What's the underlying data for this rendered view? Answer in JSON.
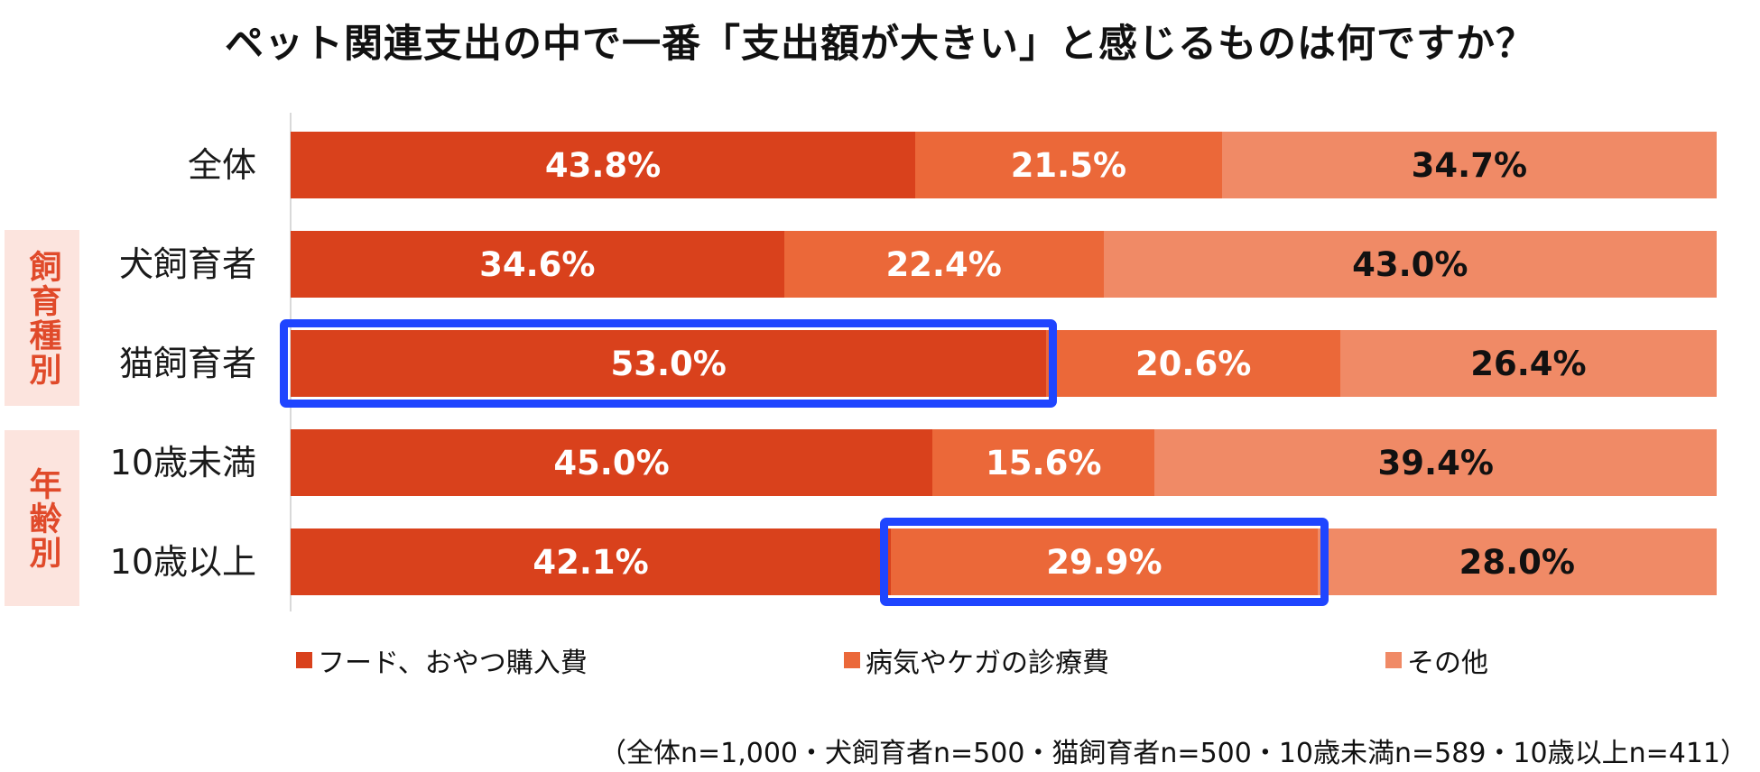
{
  "chart_data": {
    "type": "bar",
    "orientation": "horizontal",
    "stacked": true,
    "title": "ペット関連支出の中で一番「支出額が大きい」と感じるものは何ですか？",
    "categories": [
      "全体",
      "犬飼育者",
      "猫飼育者",
      "10歳未満",
      "10歳以上"
    ],
    "groups": [
      {
        "label": "飼育種別",
        "categories": [
          "犬飼育者",
          "猫飼育者"
        ]
      },
      {
        "label": "年齢別",
        "categories": [
          "10歳未満",
          "10歳以上"
        ]
      }
    ],
    "series": [
      {
        "name": "フード、おやつ購入費",
        "color": "#d9411c",
        "text_color": "#ffffff",
        "values": [
          43.8,
          34.6,
          53.0,
          45.0,
          42.1
        ],
        "labels": [
          "43.8%",
          "34.6%",
          "53.0%",
          "45.0%",
          "42.1%"
        ]
      },
      {
        "name": "病気やケガの診療費",
        "color": "#eb6839",
        "text_color": "#ffffff",
        "values": [
          21.5,
          22.4,
          20.6,
          15.6,
          29.9
        ],
        "labels": [
          "21.5%",
          "22.4%",
          "20.6%",
          "15.6%",
          "29.9%"
        ]
      },
      {
        "name": "その他",
        "color": "#f08a66",
        "text_color": "#111111",
        "values": [
          34.7,
          43.0,
          26.4,
          39.4,
          28.0
        ],
        "labels": [
          "34.7%",
          "43.0%",
          "26.4%",
          "39.4%",
          "28.0%"
        ]
      }
    ],
    "xlim": [
      0,
      100
    ],
    "highlights": [
      {
        "category": "猫飼育者",
        "series": "フード、おやつ購入費",
        "color": "#1f45ff"
      },
      {
        "category": "10歳以上",
        "series": "病気やケガの診療費",
        "color": "#1f45ff"
      }
    ],
    "legend_position": "bottom",
    "note": "（全体n=1,000・犬飼育者n=500・猫飼育者n=500・10歳未満n=589・10歳以上n=411）"
  }
}
